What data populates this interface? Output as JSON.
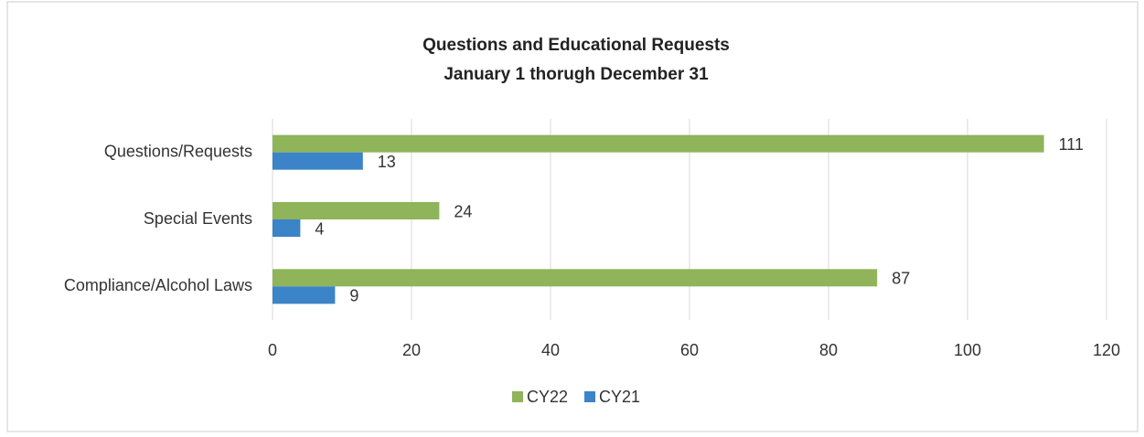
{
  "chart_data": {
    "type": "bar",
    "orientation": "horizontal",
    "title": "Questions and Educational Requests",
    "subtitle": "January 1 thorugh December 31",
    "categories": [
      "Questions/Requests",
      "Special Events",
      "Compliance/Alcohol Laws"
    ],
    "series": [
      {
        "name": "CY22",
        "color": "#8fb45a",
        "values": [
          111,
          24,
          87
        ]
      },
      {
        "name": "CY21",
        "color": "#3b84c8",
        "values": [
          13,
          4,
          9
        ]
      }
    ],
    "xlim": [
      0,
      120
    ],
    "xticks": [
      0,
      20,
      40,
      60,
      80,
      100,
      120
    ],
    "grid": true,
    "legend": "bottom"
  }
}
